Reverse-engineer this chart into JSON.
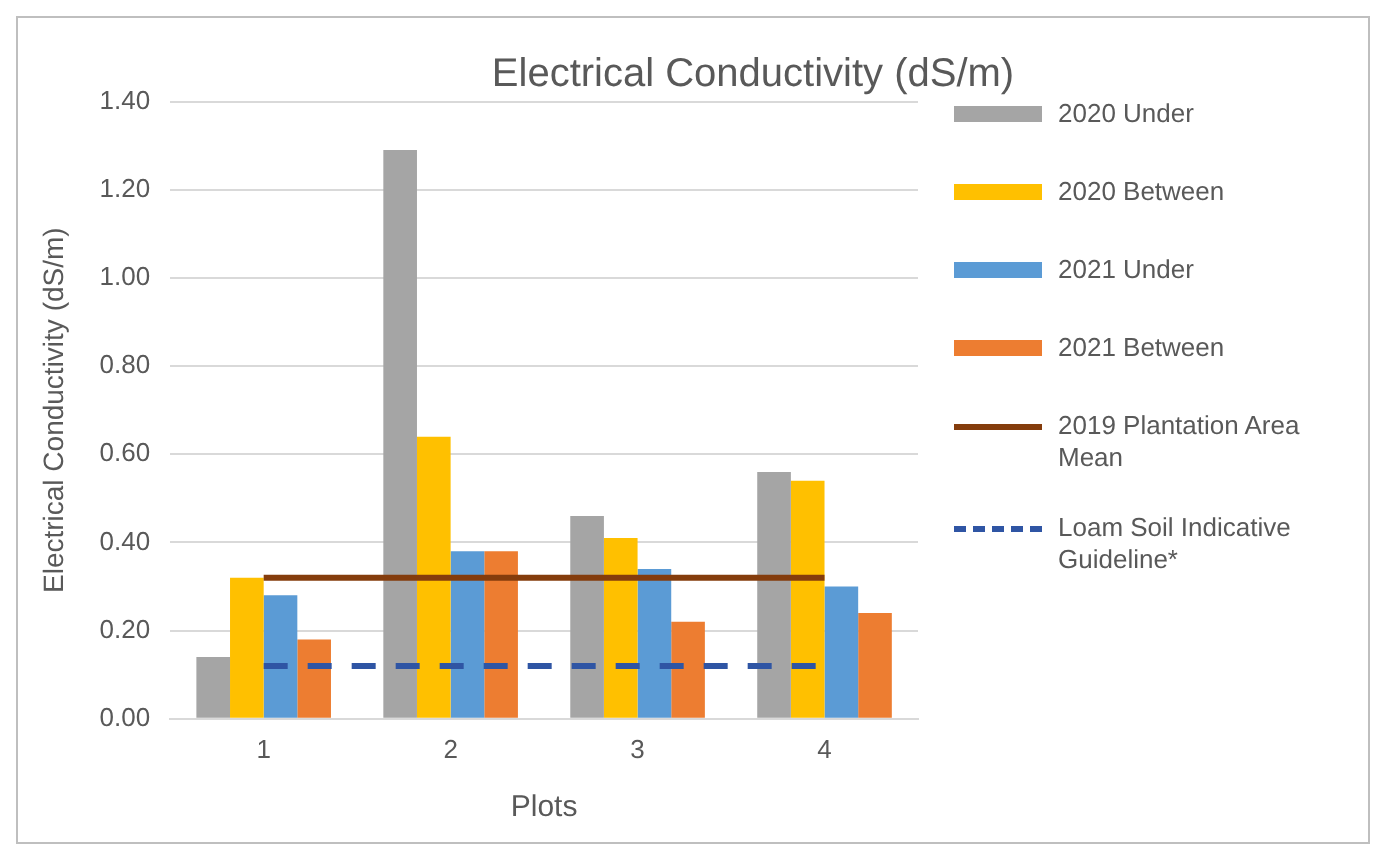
{
  "chart_data": {
    "type": "bar",
    "title": "Electrical Conductivity (dS/m)",
    "xlabel": "Plots",
    "ylabel": "Electrical Conductivity (dS/m)",
    "categories": [
      "1",
      "2",
      "3",
      "4"
    ],
    "series": [
      {
        "name": "2020 Under",
        "color": "#a5a5a5",
        "values": [
          0.14,
          1.29,
          0.46,
          0.56
        ]
      },
      {
        "name": "2020 Between",
        "color": "#ffc000",
        "values": [
          0.32,
          0.64,
          0.41,
          0.54
        ]
      },
      {
        "name": "2021 Under",
        "color": "#5b9bd5",
        "values": [
          0.28,
          0.38,
          0.34,
          0.3
        ]
      },
      {
        "name": "2021 Between",
        "color": "#ed7d31",
        "values": [
          0.18,
          0.38,
          0.22,
          0.24
        ]
      },
      {
        "name": "2019 Plantation Area Mean",
        "type": "line",
        "color": "#843c0c",
        "line_style": "solid",
        "values": [
          0.32,
          0.32,
          0.32,
          0.32
        ]
      },
      {
        "name": "Loam Soil Indicative Guideline*",
        "type": "line",
        "color": "#2f55a4",
        "line_style": "dashed",
        "values": [
          0.12,
          0.12,
          0.12,
          0.12
        ]
      }
    ],
    "ylim": [
      0,
      1.4
    ],
    "yticks": [
      {
        "value": 0,
        "label": "0.00"
      },
      {
        "value": 0.2,
        "label": "0.20"
      },
      {
        "value": 0.4,
        "label": "0.40"
      },
      {
        "value": 0.6,
        "label": "0.60"
      },
      {
        "value": 0.8,
        "label": "0.80"
      },
      {
        "value": 1,
        "label": "1.00"
      },
      {
        "value": 1.2,
        "label": "1.20"
      },
      {
        "value": 1.4,
        "label": "1.40"
      }
    ],
    "grid": "y",
    "legend": "right",
    "marker": "none"
  }
}
